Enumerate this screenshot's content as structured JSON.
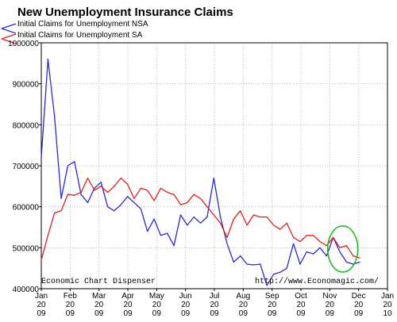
{
  "chart_data": {
    "type": "line",
    "title": "New Unemployment Insurance Claims",
    "xlabel": "",
    "ylabel": "",
    "ylim": [
      400000,
      1000000
    ],
    "yticks": [
      400000,
      500000,
      600000,
      700000,
      800000,
      900000,
      1000000
    ],
    "ytick_labels": [
      "400000",
      "500000",
      "600000",
      "700000",
      "800000",
      "900000",
      "1000000"
    ],
    "xticks": [
      {
        "x": 0,
        "month": "Jan",
        "yy": "20",
        "y2": "09"
      },
      {
        "x": 1,
        "month": "Feb",
        "yy": "20",
        "y2": "09"
      },
      {
        "x": 2,
        "month": "Mar",
        "yy": "20",
        "y2": "09"
      },
      {
        "x": 3,
        "month": "Apr",
        "yy": "20",
        "y2": "09"
      },
      {
        "x": 4,
        "month": "May",
        "yy": "20",
        "y2": "09"
      },
      {
        "x": 5,
        "month": "Jun",
        "yy": "20",
        "y2": "09"
      },
      {
        "x": 6,
        "month": "Jul",
        "yy": "20",
        "y2": "09"
      },
      {
        "x": 7,
        "month": "Aug",
        "yy": "20",
        "y2": "09"
      },
      {
        "x": 8,
        "month": "Sep",
        "yy": "20",
        "y2": "09"
      },
      {
        "x": 9,
        "month": "Oct",
        "yy": "20",
        "y2": "09"
      },
      {
        "x": 10,
        "month": "Nov",
        "yy": "20",
        "y2": "09"
      },
      {
        "x": 11,
        "month": "Dec",
        "yy": "20",
        "y2": "09"
      },
      {
        "x": 12,
        "month": "Jan",
        "yy": "20",
        "y2": "10"
      }
    ],
    "xlim": [
      0,
      12
    ],
    "grid": true,
    "legend_position": "top-left",
    "series": [
      {
        "name": "Initial Claims for Unemployment NSA",
        "color": "#2a2ad0",
        "x": [
          0,
          0.23,
          0.46,
          0.69,
          0.92,
          1.15,
          1.38,
          1.61,
          1.84,
          2.07,
          2.3,
          2.53,
          2.76,
          2.99,
          3.22,
          3.45,
          3.68,
          3.91,
          4.14,
          4.37,
          4.6,
          4.83,
          5.06,
          5.29,
          5.52,
          5.75,
          5.98,
          6.21,
          6.44,
          6.67,
          6.9,
          7.13,
          7.36,
          7.59,
          7.82,
          8.05,
          8.28,
          8.51,
          8.74,
          8.97,
          9.2,
          9.43,
          9.66,
          9.89,
          10.12,
          10.35,
          10.58,
          10.81,
          11.04
        ],
        "y": [
          720000,
          960000,
          820000,
          620000,
          700000,
          710000,
          630000,
          610000,
          645000,
          660000,
          600000,
          590000,
          605000,
          625000,
          610000,
          595000,
          540000,
          570000,
          530000,
          535000,
          505000,
          580000,
          555000,
          575000,
          560000,
          575000,
          670000,
          575000,
          510000,
          465000,
          480000,
          460000,
          458000,
          460000,
          408000,
          435000,
          440000,
          450000,
          510000,
          460000,
          490000,
          485000,
          500000,
          480000,
          525000,
          490000,
          465000,
          460000,
          465000
        ]
      },
      {
        "name": "Initial Claims for Unemployment SA",
        "color": "#e02020",
        "x": [
          0,
          0.23,
          0.46,
          0.69,
          0.92,
          1.15,
          1.38,
          1.61,
          1.84,
          2.07,
          2.3,
          2.53,
          2.76,
          2.99,
          3.22,
          3.45,
          3.68,
          3.91,
          4.14,
          4.37,
          4.6,
          4.83,
          5.06,
          5.29,
          5.52,
          5.75,
          5.98,
          6.21,
          6.44,
          6.67,
          6.9,
          7.13,
          7.36,
          7.59,
          7.82,
          8.05,
          8.28,
          8.51,
          8.74,
          8.97,
          9.2,
          9.43,
          9.66,
          9.89,
          10.12,
          10.35,
          10.58,
          10.81,
          11.04
        ],
        "y": [
          470000,
          530000,
          585000,
          590000,
          630000,
          628000,
          635000,
          670000,
          640000,
          650000,
          635000,
          650000,
          670000,
          655000,
          620000,
          645000,
          640000,
          615000,
          645000,
          635000,
          630000,
          605000,
          610000,
          630000,
          620000,
          600000,
          580000,
          560000,
          525000,
          570000,
          590000,
          555000,
          580000,
          575000,
          575000,
          555000,
          545000,
          560000,
          525000,
          515000,
          530000,
          530000,
          515000,
          505000,
          525000,
          500000,
          505000,
          480000,
          475000
        ]
      }
    ],
    "annotations": {
      "left_caption": "Economic Chart Dispenser",
      "right_caption": "http://www.Economagic.com/"
    },
    "highlight": {
      "shape": "ellipse",
      "color": "#22bb22",
      "x_center": 10.45,
      "y_center": 497000
    }
  }
}
